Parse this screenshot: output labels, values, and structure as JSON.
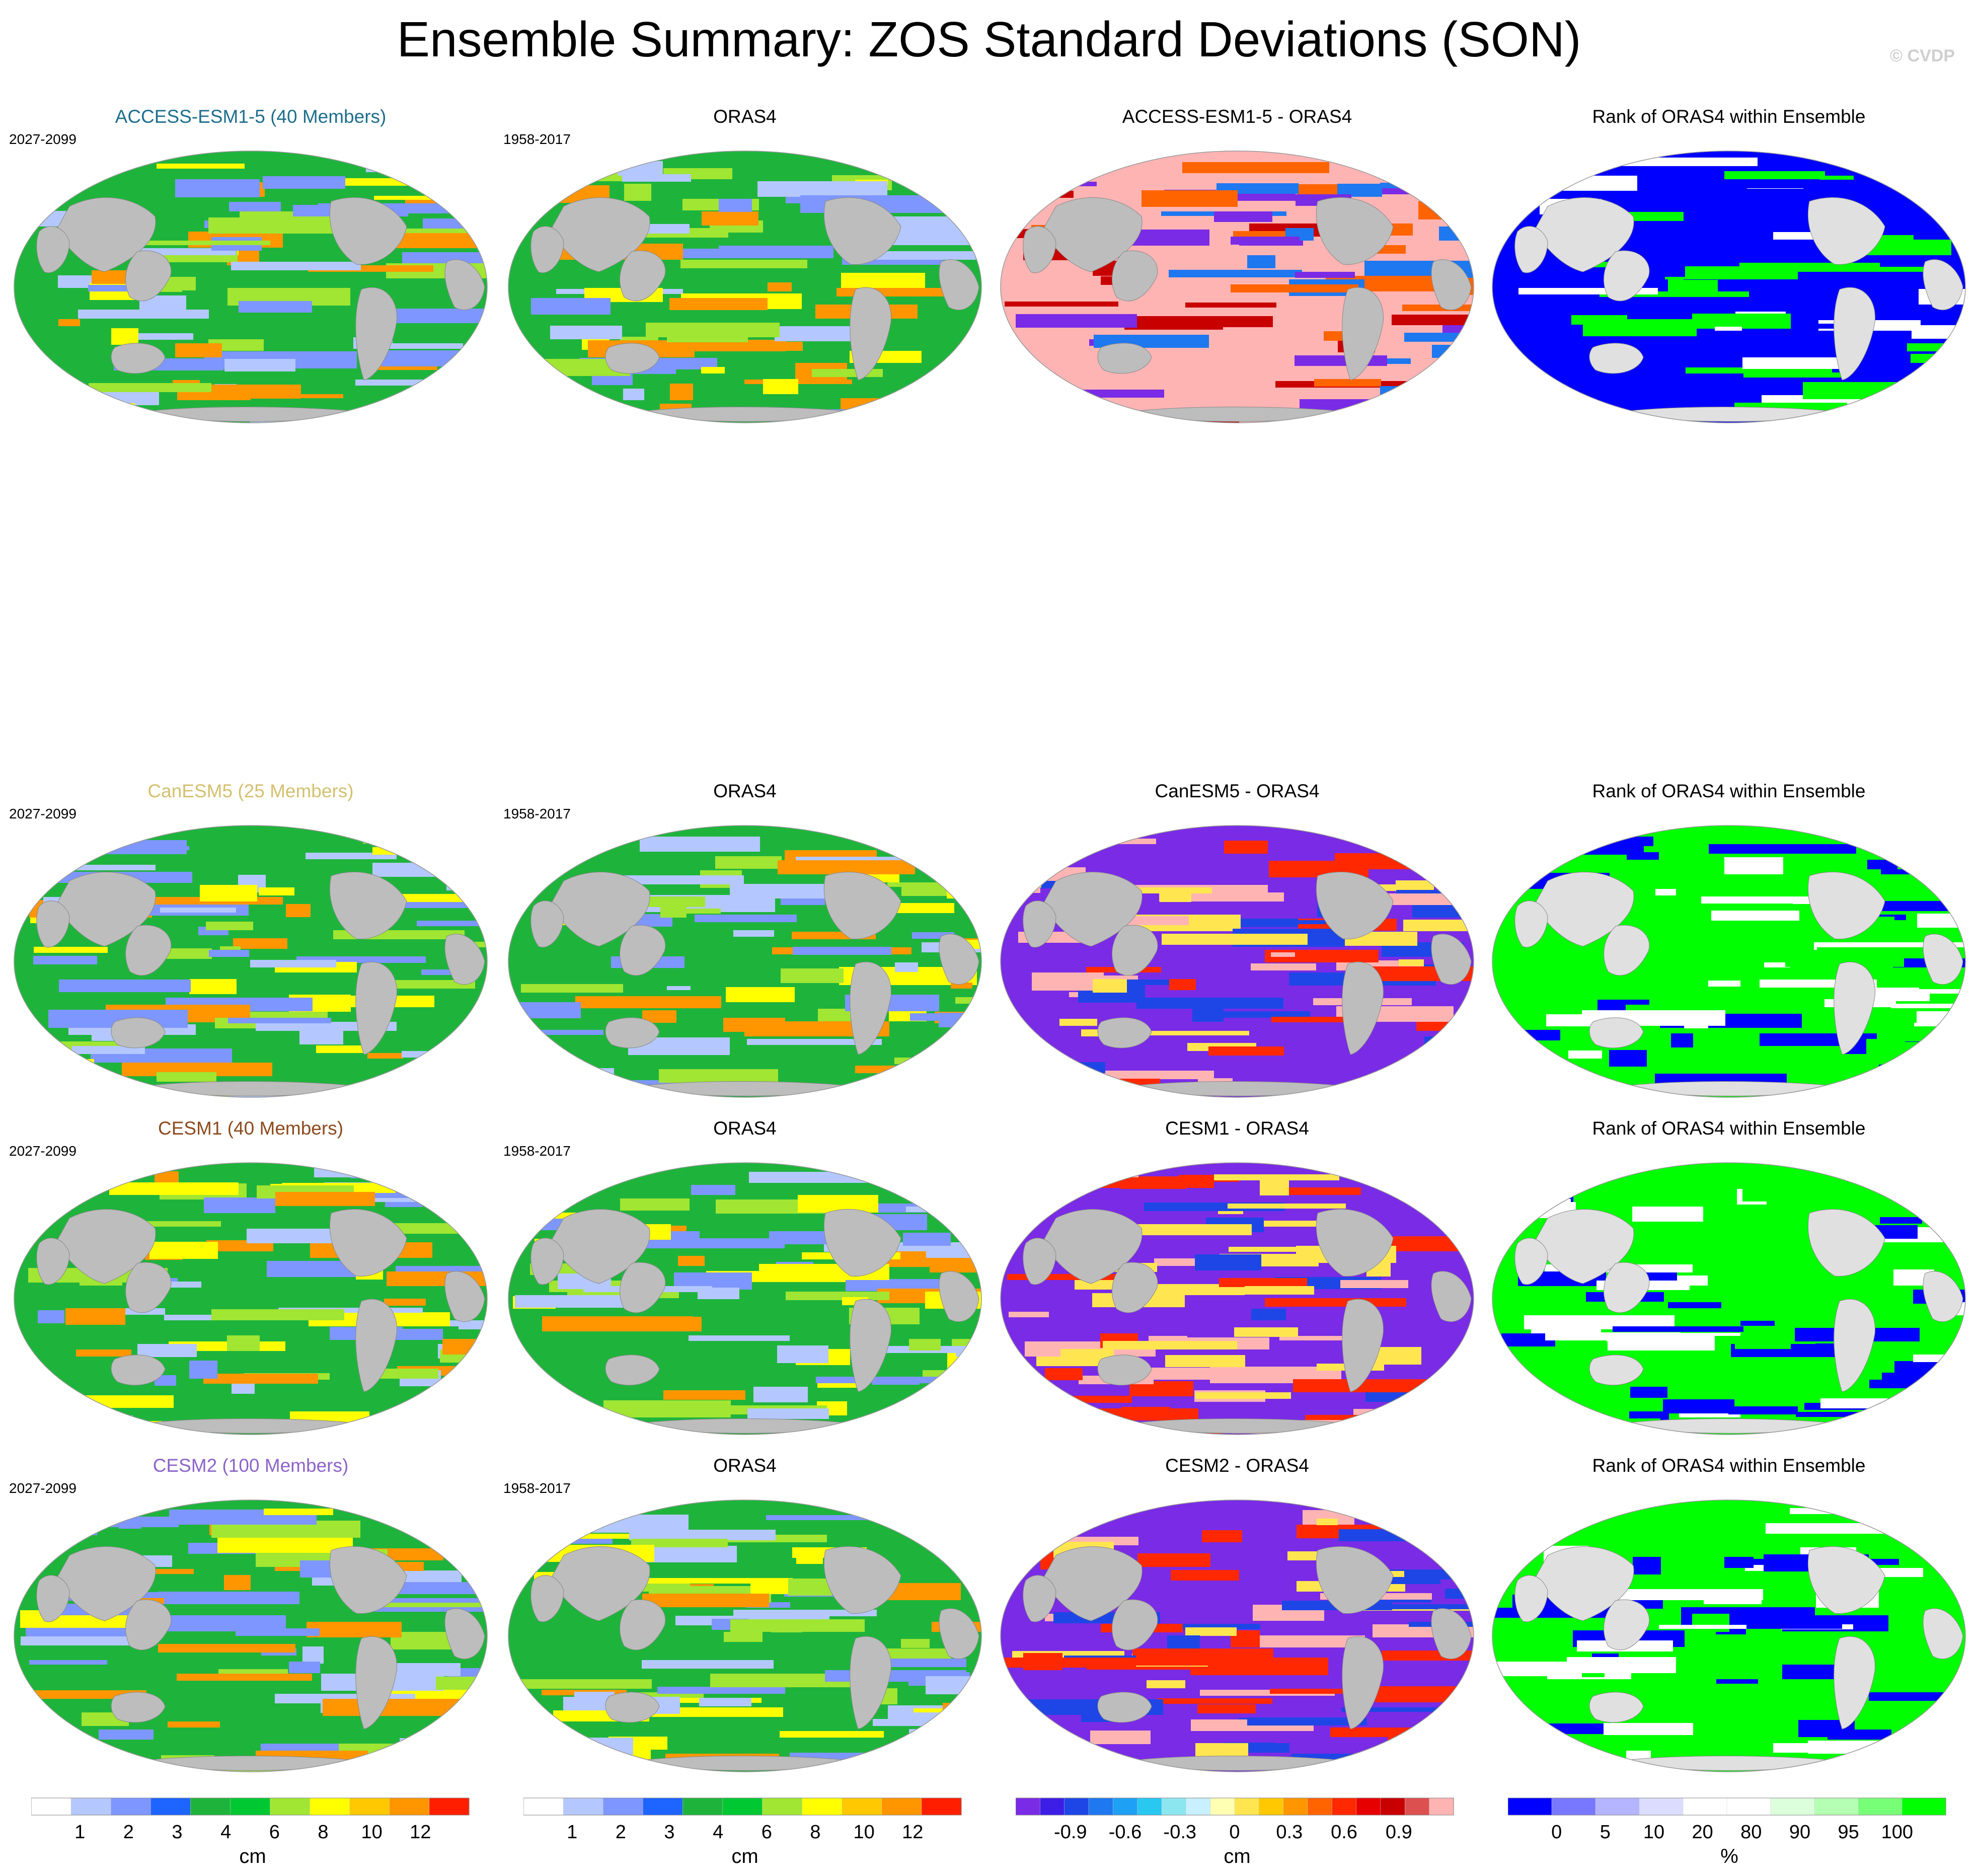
{
  "title": "Ensemble Summary: ZOS Standard Deviations (SON)",
  "watermark": "© CVDP",
  "colors": {
    "land": "#bdbdbd",
    "ice": "#e0e0e0",
    "std_scale": [
      "#ffffff",
      "#b4c8ff",
      "#7e96ff",
      "#1e64ff",
      "#1eb43c",
      "#00c832",
      "#a0e632",
      "#ffff00",
      "#ffc800",
      "#ff9600",
      "#ff1e00"
    ],
    "diff_scale": [
      "#7a2be6",
      "#3c1ee6",
      "#1e46e6",
      "#1e78f0",
      "#1ea0f5",
      "#28c8f0",
      "#8ce6f0",
      "#c8f0ff",
      "#ffffb4",
      "#ffe650",
      "#ffc800",
      "#ff9600",
      "#ff6400",
      "#ff2800",
      "#e60000",
      "#c80000",
      "#dc5050",
      "#ffb4b4"
    ],
    "rank_scale": [
      "#0000ff",
      "#7878ff",
      "#b4b4ff",
      "#dcdcff",
      "#ffffff",
      "#ffffff",
      "#dcffdc",
      "#b4ffb4",
      "#78ff78",
      "#00ff00"
    ]
  },
  "rows": [
    {
      "model": {
        "title": "ACCESS-ESM1-5 (40 Members)",
        "years": "2027-2099",
        "color": "#1e6e8c"
      },
      "obs": {
        "title": "ORAS4",
        "years": "1958-2017"
      },
      "diff": {
        "title": "ACCESS-ESM1-5 - ORAS4"
      },
      "rank": {
        "title": "Rank of ORAS4 within Ensemble"
      }
    },
    {
      "model": {
        "title": "CanESM5 (25 Members)",
        "years": "2027-2099",
        "color": "#d4c070"
      },
      "obs": {
        "title": "ORAS4",
        "years": "1958-2017"
      },
      "diff": {
        "title": "CanESM5 - ORAS4"
      },
      "rank": {
        "title": "Rank of ORAS4 within Ensemble"
      }
    },
    {
      "model": {
        "title": "CESM1 (40 Members)",
        "years": "2027-2099",
        "color": "#8c4a1e"
      },
      "obs": {
        "title": "ORAS4",
        "years": "1958-2017"
      },
      "diff": {
        "title": "CESM1 - ORAS4"
      },
      "rank": {
        "title": "Rank of ORAS4 within Ensemble"
      }
    },
    {
      "model": {
        "title": "CESM2 (100 Members)",
        "years": "2027-2099",
        "color": "#8c64c8"
      },
      "obs": {
        "title": "ORAS4",
        "years": "1958-2017"
      },
      "diff": {
        "title": "CESM2 - ORAS4"
      },
      "rank": {
        "title": "Rank of ORAS4 within Ensemble"
      }
    }
  ],
  "colorbars": [
    {
      "unit": "cm",
      "labels": [
        "1",
        "2",
        "3",
        "4",
        "6",
        "8",
        "10",
        "12"
      ]
    },
    {
      "unit": "cm",
      "labels": [
        "1",
        "2",
        "3",
        "4",
        "6",
        "8",
        "10",
        "12"
      ]
    },
    {
      "unit": "cm",
      "labels": [
        "-0.9",
        "-0.6",
        "-0.3",
        "0",
        "0.3",
        "0.6",
        "0.9"
      ]
    },
    {
      "unit": "%",
      "labels": [
        "0",
        "5",
        "10",
        "20",
        "80",
        "90",
        "95",
        "100"
      ]
    }
  ]
}
